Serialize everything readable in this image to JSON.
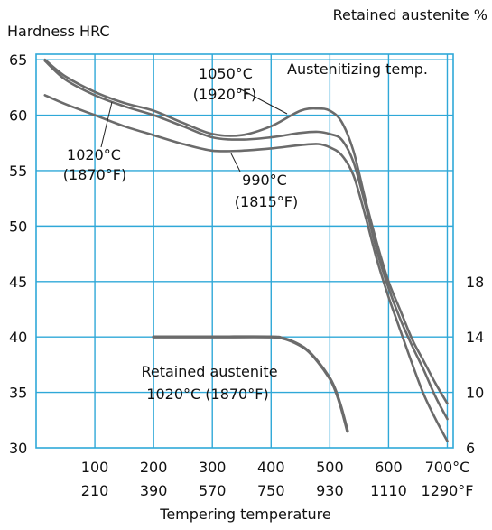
{
  "chart_data": {
    "type": "line",
    "y_label_left": "Hardness HRC",
    "y_label_right": "Retained austenite %",
    "x_label": "Tempering temperature",
    "x_ticks_c": [
      "100",
      "200",
      "300",
      "400",
      "500",
      "600",
      "700°C"
    ],
    "x_ticks_f": [
      "210",
      "390",
      "570",
      "750",
      "930",
      "1110",
      "1290°F"
    ],
    "x_tick_values": [
      100,
      200,
      300,
      400,
      500,
      600,
      700
    ],
    "y_ticks_left": [
      "30",
      "35",
      "40",
      "45",
      "50",
      "55",
      "60",
      "65"
    ],
    "y_tick_values_left": [
      30,
      35,
      40,
      45,
      50,
      55,
      60,
      65
    ],
    "y_ticks_right": [
      {
        "label": "6",
        "value": 6
      },
      {
        "label": "10",
        "value": 10
      },
      {
        "label": "14",
        "value": 14
      },
      {
        "label": "18",
        "value": 18
      }
    ],
    "xlim": [
      0,
      710
    ],
    "ylim": [
      30,
      65.5
    ],
    "right_axis": {
      "min": 6,
      "max": 18,
      "min_hrc": 30,
      "max_hrc": 45
    },
    "grid": true,
    "annotation_header": "Austenitizing temp.",
    "series": [
      {
        "id": "hrc-1050",
        "name_c": "1050°C",
        "name_f": "(1920°F)",
        "x": [
          15,
          50,
          100,
          150,
          200,
          250,
          300,
          350,
          400,
          450,
          480,
          500,
          520,
          540,
          560,
          580,
          600,
          620,
          640,
          660,
          680,
          700
        ],
        "y": [
          65,
          63.5,
          62.1,
          61.1,
          60.4,
          59.3,
          58.3,
          58.2,
          59.0,
          60.4,
          60.6,
          60.4,
          59.4,
          56.8,
          52.5,
          48.5,
          45.0,
          42.4,
          39.8,
          37.8,
          35.8,
          34.0
        ]
      },
      {
        "id": "hrc-1020",
        "name_c": "1020°C",
        "name_f": "(1870°F)",
        "x": [
          15,
          50,
          100,
          150,
          200,
          250,
          300,
          350,
          400,
          450,
          480,
          500,
          520,
          540,
          560,
          580,
          600,
          620,
          640,
          660,
          680,
          700
        ],
        "y": [
          64.9,
          63.2,
          61.8,
          60.8,
          60.0,
          59.0,
          58.0,
          57.8,
          58.0,
          58.4,
          58.5,
          58.3,
          57.8,
          55.8,
          52.0,
          47.8,
          44.4,
          41.6,
          39.2,
          37.0,
          34.6,
          32.6
        ]
      },
      {
        "id": "hrc-990",
        "name_c": "990°C",
        "name_f": "(1815°F)",
        "x": [
          15,
          50,
          100,
          150,
          200,
          250,
          300,
          350,
          400,
          450,
          480,
          500,
          520,
          540,
          560,
          580,
          600,
          620,
          640,
          660,
          680,
          700
        ],
        "y": [
          61.8,
          61.0,
          60.0,
          59.0,
          58.2,
          57.4,
          56.8,
          56.8,
          57.0,
          57.3,
          57.4,
          57.1,
          56.4,
          54.6,
          51.0,
          47.0,
          43.6,
          40.6,
          37.6,
          34.8,
          32.6,
          30.6
        ]
      },
      {
        "id": "retained-austenite",
        "name_c": "Retained austenite",
        "name_f": "1020°C (1870°F)",
        "axis": "right",
        "x": [
          200,
          300,
          400,
          420,
          440,
          460,
          480,
          500,
          510,
          520,
          530
        ],
        "y": [
          14,
          14,
          14,
          13.9,
          13.6,
          13.1,
          12.2,
          11.0,
          10.1,
          8.8,
          7.2
        ]
      }
    ]
  }
}
